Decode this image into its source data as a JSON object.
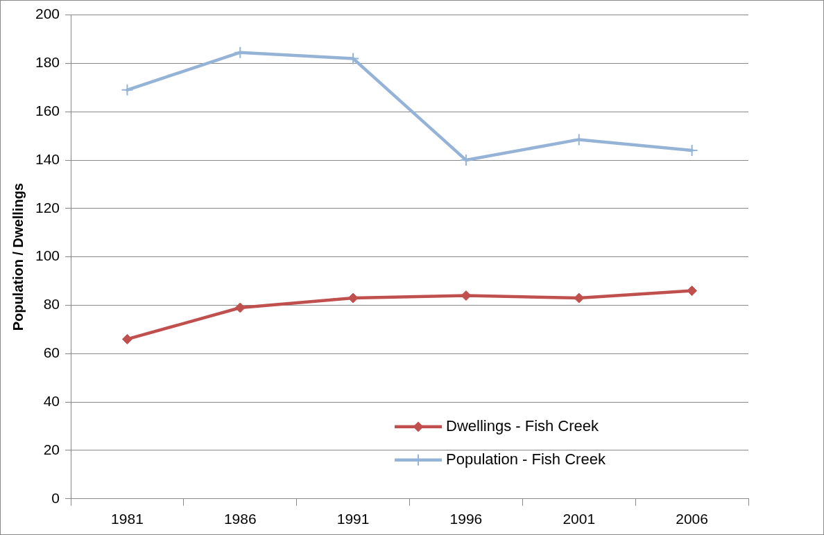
{
  "chart_data": {
    "type": "line",
    "ylabel": "Population / Dwellings",
    "categories": [
      "1981",
      "1986",
      "1991",
      "1996",
      "2001",
      "2006"
    ],
    "series": [
      {
        "name": "Dwellings - Fish Creek",
        "color": "#c0504d",
        "marker": "diamond",
        "values": [
          66,
          79,
          83,
          84,
          83,
          86
        ]
      },
      {
        "name": "Population - Fish Creek",
        "color": "#95b3d7",
        "marker": "cross",
        "values": [
          169,
          184.5,
          182,
          140,
          148.5,
          144
        ]
      }
    ],
    "ylim": [
      0,
      200
    ],
    "yticks": [
      0,
      20,
      40,
      60,
      80,
      100,
      120,
      140,
      160,
      180,
      200
    ],
    "grid": "y",
    "legend": "bottom right",
    "line_style": "solid"
  }
}
